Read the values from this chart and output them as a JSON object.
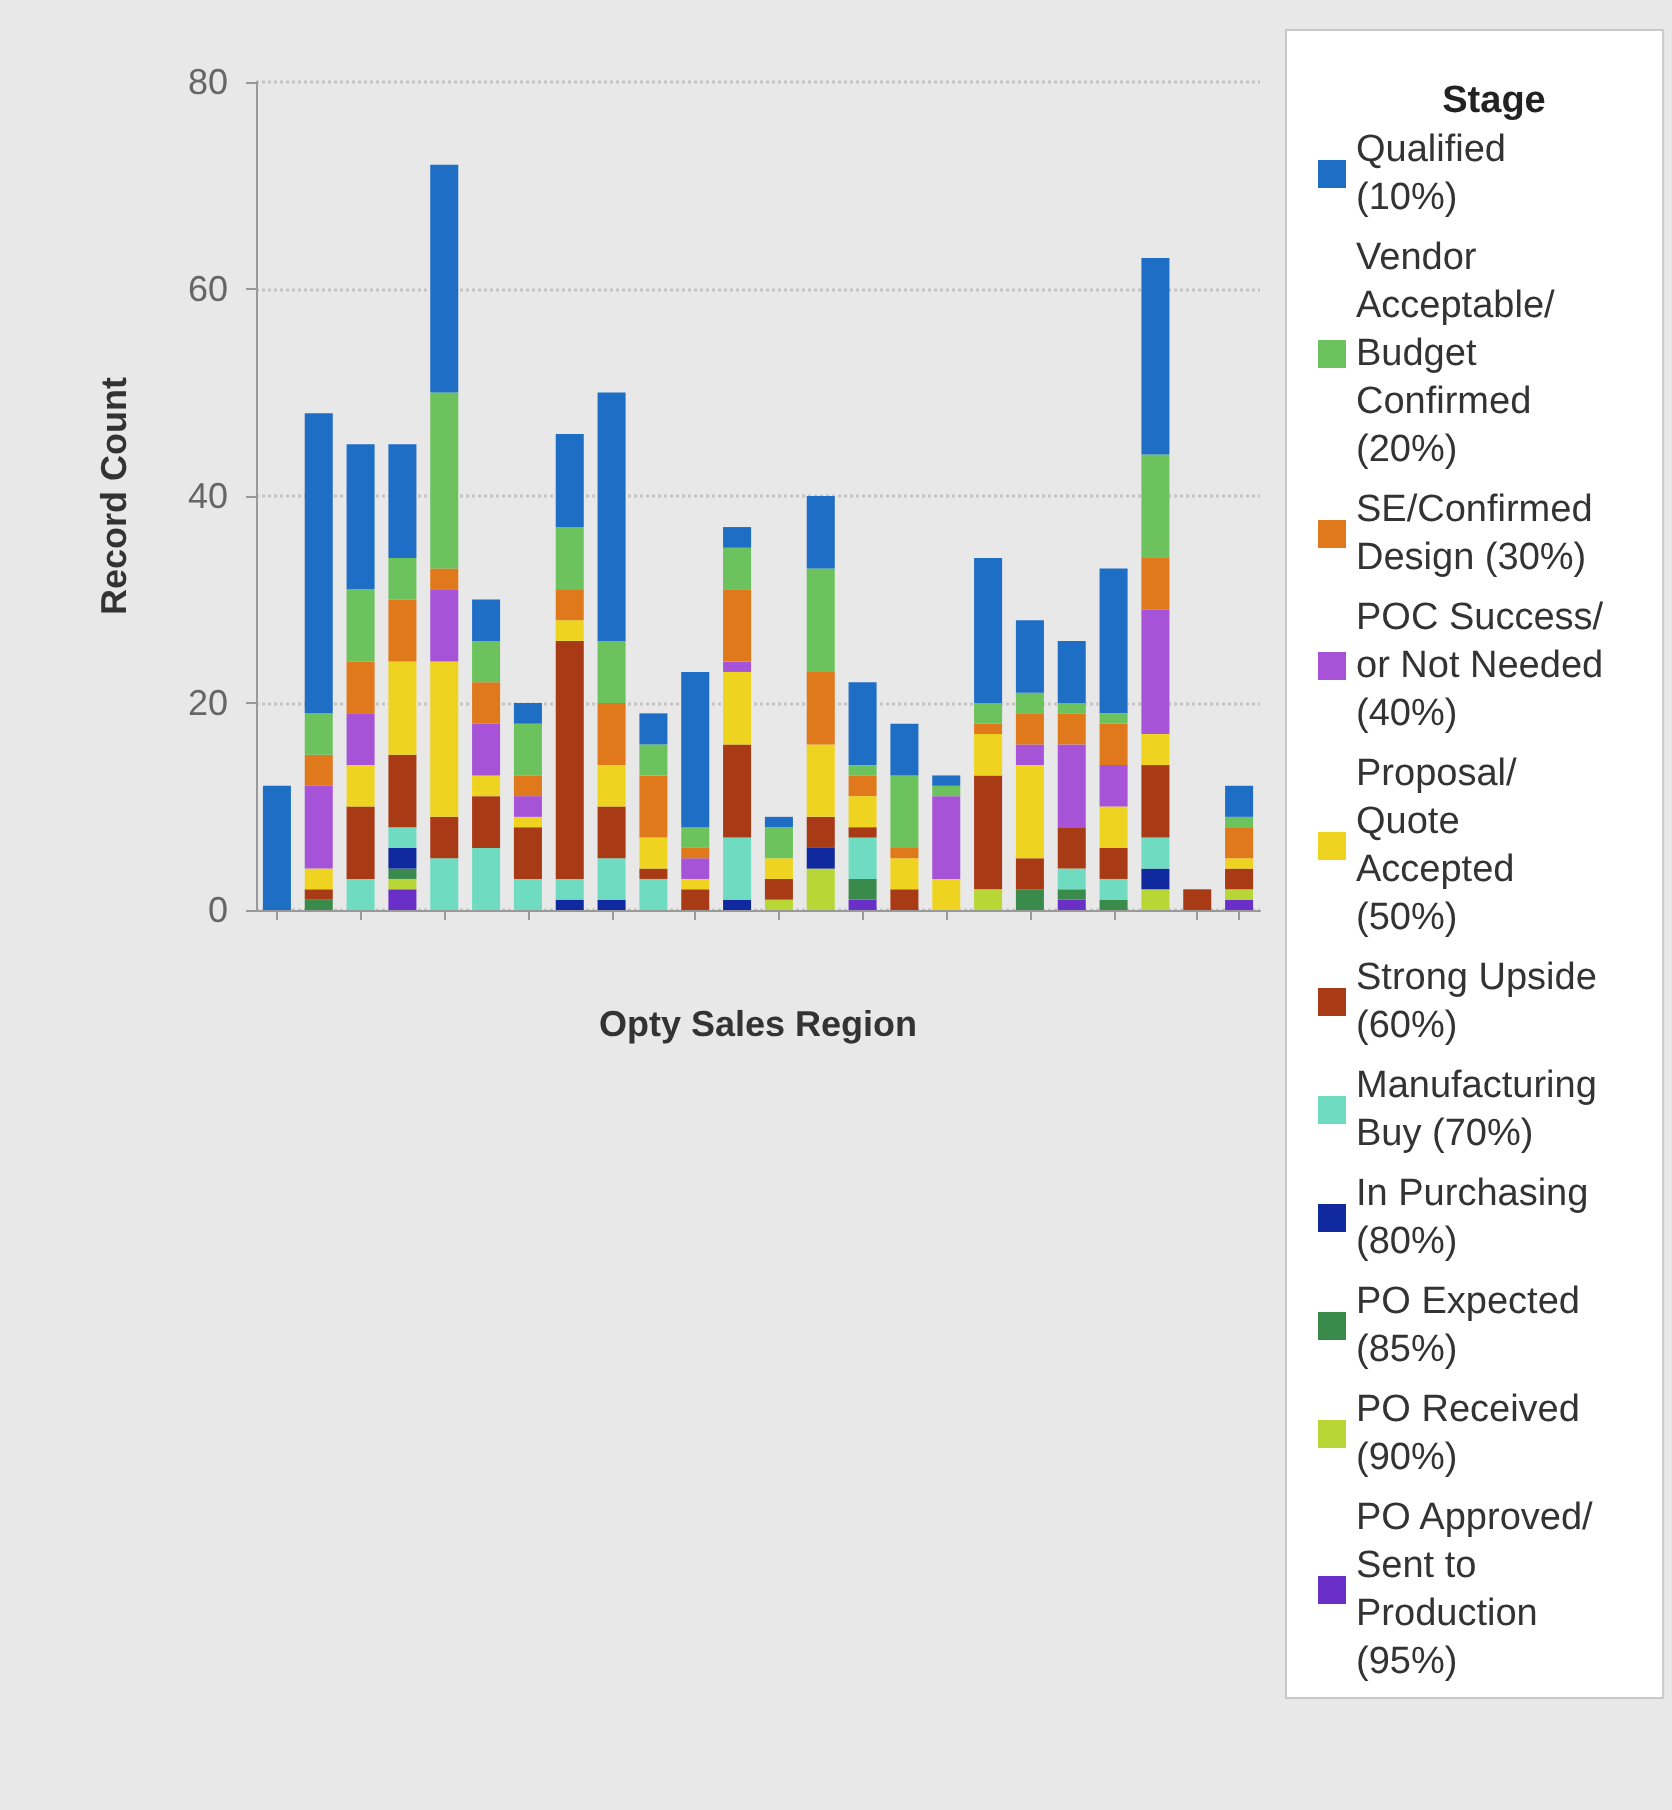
{
  "chart_data": {
    "type": "bar",
    "stacked": true,
    "xlabel": "Opty Sales Region",
    "ylabel": "Record Count",
    "legend_title": "Stage",
    "legend": "right",
    "grid": "y",
    "categories": [
      null,
      null,
      null,
      null,
      null,
      null,
      null,
      null,
      null,
      null,
      null,
      null,
      null,
      null,
      null,
      null,
      null,
      null,
      null,
      null,
      null,
      null,
      null,
      null
    ],
    "ylim": [
      0,
      80
    ],
    "yticks": [
      0,
      20,
      40,
      60,
      80
    ],
    "series": [
      {
        "name": "PO Approved/Sent to Production (95%)",
        "color": "#6a2fc6",
        "values": [
          0,
          0,
          0,
          2,
          0,
          0,
          0,
          0,
          0,
          0,
          0,
          0,
          0,
          0,
          1,
          0,
          0,
          0,
          0,
          1,
          0,
          0,
          0,
          1
        ]
      },
      {
        "name": "PO Received (90%)",
        "color": "#b9d637",
        "values": [
          0,
          0,
          0,
          1,
          0,
          0,
          0,
          0,
          0,
          0,
          0,
          0,
          1,
          4,
          0,
          0,
          0,
          2,
          0,
          0,
          0,
          2,
          0,
          1
        ]
      },
      {
        "name": "PO Expected (85%)",
        "color": "#3a8a4c",
        "values": [
          0,
          1,
          0,
          1,
          0,
          0,
          0,
          0,
          0,
          0,
          0,
          0,
          0,
          0,
          2,
          0,
          0,
          0,
          2,
          1,
          1,
          0,
          0,
          0
        ]
      },
      {
        "name": "In Purchasing (80%)",
        "color": "#10299e",
        "values": [
          0,
          0,
          0,
          2,
          0,
          0,
          0,
          1,
          1,
          0,
          0,
          1,
          0,
          2,
          0,
          0,
          0,
          0,
          0,
          0,
          0,
          2,
          0,
          0
        ]
      },
      {
        "name": "Manufacturing Buy (70%)",
        "color": "#6fdcc2",
        "values": [
          0,
          0,
          3,
          2,
          5,
          6,
          3,
          2,
          4,
          3,
          0,
          6,
          0,
          0,
          4,
          0,
          0,
          0,
          0,
          2,
          2,
          3,
          0,
          0
        ]
      },
      {
        "name": "Strong Upside (60%)",
        "color": "#a83a16",
        "values": [
          0,
          1,
          7,
          7,
          4,
          5,
          5,
          23,
          5,
          1,
          2,
          9,
          2,
          3,
          1,
          2,
          0,
          11,
          3,
          4,
          3,
          7,
          2,
          2
        ]
      },
      {
        "name": "Proposal/Quote Accepted (50%)",
        "color": "#eed420",
        "values": [
          0,
          2,
          4,
          9,
          15,
          2,
          1,
          2,
          4,
          3,
          1,
          7,
          2,
          7,
          3,
          3,
          3,
          4,
          9,
          0,
          4,
          3,
          0,
          1
        ]
      },
      {
        "name": "POC Success/or Not Needed (40%)",
        "color": "#a653d8",
        "values": [
          0,
          8,
          5,
          0,
          7,
          5,
          2,
          0,
          0,
          0,
          2,
          1,
          0,
          0,
          0,
          0,
          8,
          0,
          2,
          8,
          4,
          12,
          0,
          0
        ]
      },
      {
        "name": "SE/Confirmed Design (30%)",
        "color": "#e0781c",
        "values": [
          0,
          3,
          5,
          6,
          2,
          4,
          2,
          3,
          6,
          6,
          1,
          7,
          0,
          7,
          2,
          1,
          0,
          1,
          3,
          3,
          4,
          5,
          0,
          3
        ]
      },
      {
        "name": "Vendor Acceptable/Budget Confirmed (20%)",
        "color": "#6cc25c",
        "values": [
          0,
          4,
          7,
          4,
          17,
          4,
          5,
          6,
          6,
          3,
          2,
          4,
          3,
          10,
          1,
          7,
          1,
          2,
          2,
          1,
          1,
          10,
          0,
          1
        ]
      },
      {
        "name": "Qualified (10%)",
        "color": "#1f6ec6",
        "values": [
          12,
          29,
          14,
          11,
          22,
          4,
          2,
          9,
          24,
          3,
          15,
          2,
          1,
          7,
          8,
          5,
          1,
          14,
          7,
          6,
          14,
          19,
          0,
          3
        ]
      }
    ]
  }
}
